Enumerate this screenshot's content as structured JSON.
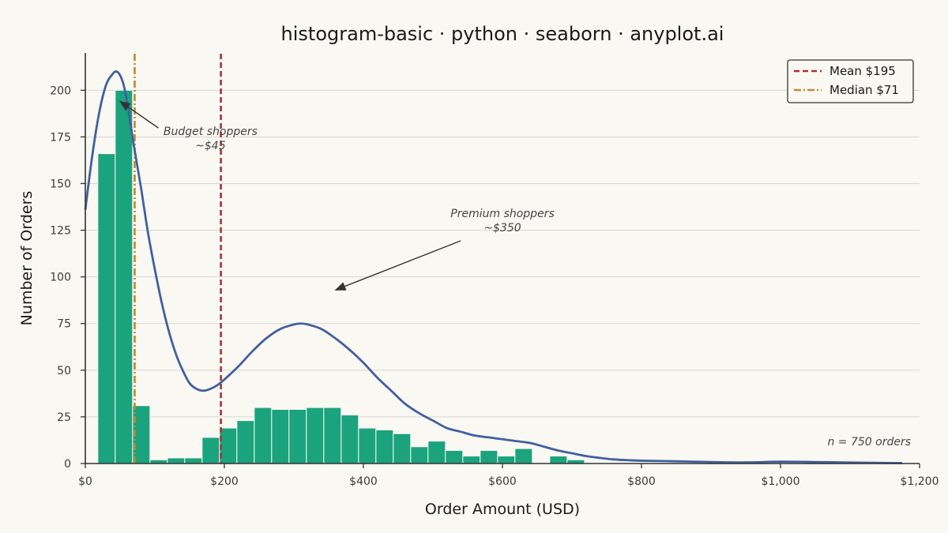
{
  "chart_data": {
    "type": "bar",
    "title": "histogram-basic · python · seaborn · anyplot.ai",
    "xlabel": "Order Amount (USD)",
    "ylabel": "Number of Orders",
    "xlim": [
      0,
      1200
    ],
    "ylim": [
      0,
      220
    ],
    "x_ticks": [
      0,
      200,
      400,
      600,
      800,
      1000,
      1200
    ],
    "x_tick_labels": [
      "$0",
      "$200",
      "$400",
      "$600",
      "$800",
      "$1,000",
      "$1,200"
    ],
    "y_ticks": [
      0,
      25,
      50,
      75,
      100,
      125,
      150,
      175,
      200
    ],
    "y_tick_labels": [
      "0",
      "25",
      "50",
      "75",
      "100",
      "125",
      "150",
      "175",
      "200"
    ],
    "grid": "horizontal",
    "bin_width": 25,
    "bins": [
      {
        "start": 18,
        "count": 166
      },
      {
        "start": 43,
        "count": 200
      },
      {
        "start": 68,
        "count": 31
      },
      {
        "start": 93,
        "count": 2
      },
      {
        "start": 118,
        "count": 3
      },
      {
        "start": 143,
        "count": 3
      },
      {
        "start": 168,
        "count": 14
      },
      {
        "start": 193,
        "count": 19
      },
      {
        "start": 218,
        "count": 23
      },
      {
        "start": 243,
        "count": 30
      },
      {
        "start": 268,
        "count": 29
      },
      {
        "start": 293,
        "count": 29
      },
      {
        "start": 318,
        "count": 30
      },
      {
        "start": 343,
        "count": 30
      },
      {
        "start": 368,
        "count": 26
      },
      {
        "start": 393,
        "count": 19
      },
      {
        "start": 418,
        "count": 18
      },
      {
        "start": 443,
        "count": 16
      },
      {
        "start": 468,
        "count": 9
      },
      {
        "start": 493,
        "count": 12
      },
      {
        "start": 518,
        "count": 7
      },
      {
        "start": 543,
        "count": 4
      },
      {
        "start": 568,
        "count": 7
      },
      {
        "start": 593,
        "count": 4
      },
      {
        "start": 618,
        "count": 8
      },
      {
        "start": 643,
        "count": 0
      },
      {
        "start": 668,
        "count": 4
      },
      {
        "start": 693,
        "count": 2
      }
    ],
    "bar_color": "#1BA37E",
    "kde": {
      "color": "#4060A0",
      "x": [
        0,
        10,
        20,
        30,
        40,
        45,
        50,
        55,
        60,
        70,
        80,
        90,
        100,
        110,
        120,
        130,
        140,
        150,
        160,
        170,
        180,
        190,
        200,
        220,
        240,
        260,
        280,
        300,
        310,
        320,
        340,
        360,
        380,
        400,
        420,
        440,
        460,
        480,
        500,
        520,
        540,
        560,
        580,
        600,
        620,
        640,
        660,
        680,
        700,
        720,
        740,
        760,
        780,
        800,
        850,
        900,
        950,
        1000,
        1050,
        1100,
        1175
      ],
      "y": [
        136,
        165,
        188,
        203,
        209,
        210,
        208,
        203,
        194,
        170,
        148,
        124,
        104,
        86,
        71,
        59,
        50,
        43,
        40,
        39,
        40,
        42,
        45,
        52,
        60,
        67,
        72,
        74.5,
        75,
        74.5,
        72,
        67,
        61,
        54,
        46,
        39,
        32,
        27,
        23,
        19,
        17,
        15,
        14,
        13,
        12,
        11,
        9,
        7,
        5.5,
        4,
        3,
        2.2,
        1.8,
        1.5,
        1.2,
        0.8,
        0.6,
        1,
        0.8,
        0.5,
        0.2
      ]
    },
    "mean": {
      "value": 195,
      "label": "Mean  $195",
      "color": "#A83232"
    },
    "median": {
      "value": 71,
      "label": "Median $71",
      "color": "#C4862E"
    },
    "legend_position": "top-right",
    "annotations": [
      {
        "lines": [
          "Budget shoppers",
          "~$45"
        ],
        "target": [
          50,
          194
        ],
        "text_at": [
          180,
          176
        ]
      },
      {
        "lines": [
          "Premium shoppers",
          "~$350"
        ],
        "target": [
          360,
          93
        ],
        "text_at": [
          600,
          132
        ]
      }
    ],
    "footnote": "n = 750 orders"
  }
}
